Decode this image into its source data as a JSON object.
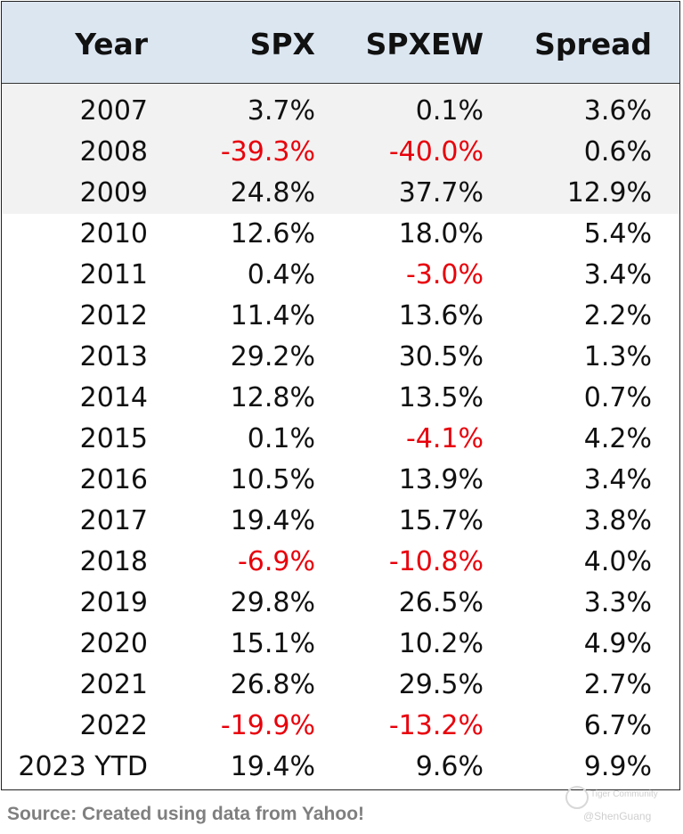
{
  "headers": {
    "year": "Year",
    "spx": "SPX",
    "spxew": "SPXEW",
    "spread": "Spread"
  },
  "rows": [
    {
      "year": "2007",
      "spx": "3.7%",
      "spxew": "0.1%",
      "spread": "3.6%"
    },
    {
      "year": "2008",
      "spx": "-39.3%",
      "spxew": "-40.0%",
      "spread": "0.6%"
    },
    {
      "year": "2009",
      "spx": "24.8%",
      "spxew": "37.7%",
      "spread": "12.9%"
    },
    {
      "year": "2010",
      "spx": "12.6%",
      "spxew": "18.0%",
      "spread": "5.4%"
    },
    {
      "year": "2011",
      "spx": "0.4%",
      "spxew": "-3.0%",
      "spread": "3.4%"
    },
    {
      "year": "2012",
      "spx": "11.4%",
      "spxew": "13.6%",
      "spread": "2.2%"
    },
    {
      "year": "2013",
      "spx": "29.2%",
      "spxew": "30.5%",
      "spread": "1.3%"
    },
    {
      "year": "2014",
      "spx": "12.8%",
      "spxew": "13.5%",
      "spread": "0.7%"
    },
    {
      "year": "2015",
      "spx": "0.1%",
      "spxew": "-4.1%",
      "spread": "4.2%"
    },
    {
      "year": "2016",
      "spx": "10.5%",
      "spxew": "13.9%",
      "spread": "3.4%"
    },
    {
      "year": "2017",
      "spx": "19.4%",
      "spxew": "15.7%",
      "spread": "3.8%"
    },
    {
      "year": "2018",
      "spx": "-6.9%",
      "spxew": "-10.8%",
      "spread": "4.0%"
    },
    {
      "year": "2019",
      "spx": "29.8%",
      "spxew": "26.5%",
      "spread": "3.3%"
    },
    {
      "year": "2020",
      "spx": "15.1%",
      "spxew": "10.2%",
      "spread": "4.9%"
    },
    {
      "year": "2021",
      "spx": "26.8%",
      "spxew": "29.5%",
      "spread": "2.7%"
    },
    {
      "year": "2022",
      "spx": "-19.9%",
      "spxew": "-13.2%",
      "spread": "6.7%"
    },
    {
      "year": "2023 YTD",
      "spx": "19.4%",
      "spxew": "9.6%",
      "spread": "9.9%"
    }
  ],
  "colors": {
    "negative": "#e8000b",
    "header_bg": "#dce6f1",
    "highlight_bg": "#f2f2f2"
  },
  "source": "Source: Created using data from Yahoo!",
  "watermark": {
    "brand": "Tiger Community",
    "handle": "@ShenGuang"
  }
}
